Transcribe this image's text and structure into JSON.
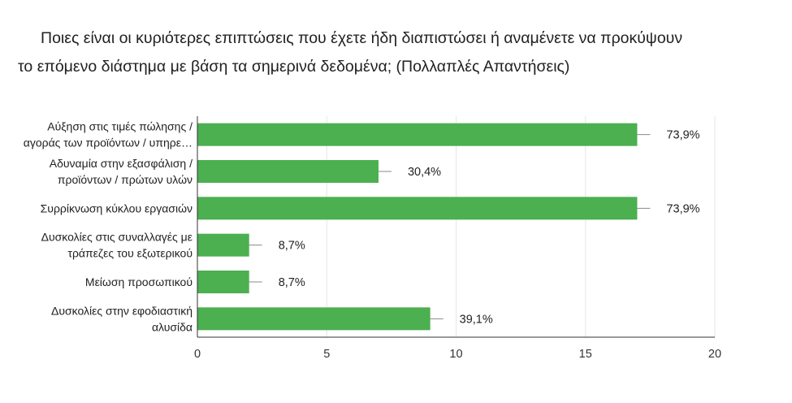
{
  "chart_data": {
    "type": "bar",
    "orientation": "horizontal",
    "title_lines": [
      "Ποιες είναι οι κυριότερες επιπτώσεις που έχετε ήδη διαπιστώσει ή αναμένετε να προκύψουν",
      "το επόμενο διάστημα με βάση τα σημερινά δεδομένα; (Πολλαπλές Απαντήσεις)"
    ],
    "categories": [
      [
        "Αύξηση στις τιμές πώλησης /",
        "αγοράς των προϊόντων / υπηρε…"
      ],
      [
        "Αδυναμία στην εξασφάλιση /",
        "προϊόντων / πρώτων υλών"
      ],
      [
        "Συρρίκνωση κύκλου εργασιών"
      ],
      [
        "Δυσκολίες στις συναλλαγές με",
        "τράπεζες του εξωτερικού"
      ],
      [
        "Μείωση προσωπικού"
      ],
      [
        "Δυσκολίες στην εφοδιαστική",
        "αλυσίδα"
      ]
    ],
    "values": [
      17,
      7,
      17,
      2,
      2,
      9
    ],
    "data_labels": [
      "73,9%",
      "30,4%",
      "73,9%",
      "8,7%",
      "8,7%",
      "39,1%"
    ],
    "x_ticks": [
      "0",
      "5",
      "10",
      "15",
      "20"
    ],
    "xlim": [
      0,
      20
    ],
    "grid": true,
    "bar_color": "#4caf50",
    "axis_color": "#333333",
    "grid_color": "#e6e6e6"
  }
}
